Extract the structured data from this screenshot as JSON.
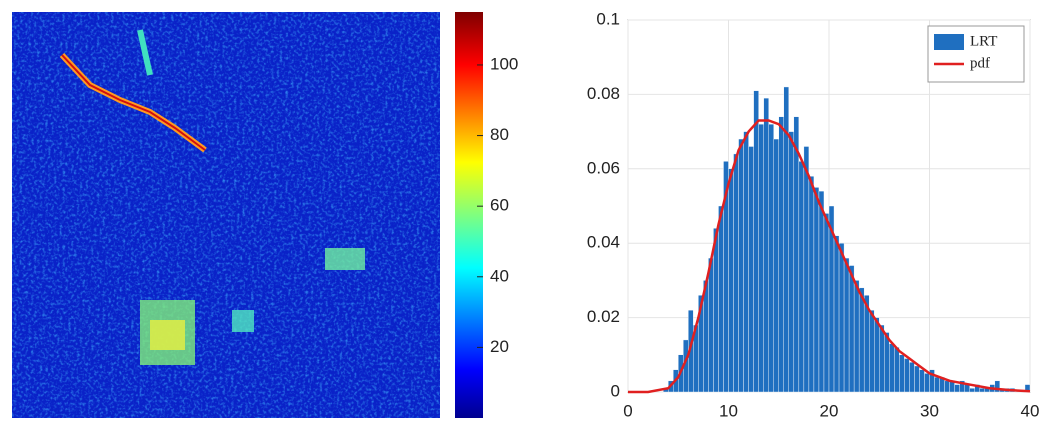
{
  "chart_data": [
    {
      "type": "heatmap",
      "clim": [
        0,
        115
      ],
      "cticks": [
        20,
        40,
        60,
        80,
        100
      ]
    },
    {
      "type": "histogram",
      "xlim": [
        0,
        40
      ],
      "ylim": [
        0,
        0.1
      ],
      "xticks": [
        0,
        10,
        20,
        30,
        40
      ],
      "yticks": [
        0,
        0.02,
        0.04,
        0.06,
        0.08,
        0.1
      ],
      "grid": true,
      "legend": "top-right",
      "bins": [
        0,
        0.5,
        1,
        1.5,
        2,
        2.5,
        3,
        3.5,
        4,
        4.5,
        5,
        5.5,
        6,
        6.5,
        7,
        7.5,
        8,
        8.5,
        9,
        9.5,
        10,
        10.5,
        11,
        11.5,
        12,
        12.5,
        13,
        13.5,
        14,
        14.5,
        15,
        15.5,
        16,
        16.5,
        17,
        17.5,
        18,
        18.5,
        19,
        19.5,
        20,
        20.5,
        21,
        21.5,
        22,
        22.5,
        23,
        23.5,
        24,
        24.5,
        25,
        25.5,
        26,
        26.5,
        27,
        27.5,
        28,
        28.5,
        29,
        29.5,
        30,
        30.5,
        31,
        31.5,
        32,
        32.5,
        33,
        33.5,
        34,
        34.5,
        35,
        35.5,
        36,
        36.5,
        37,
        37.5,
        38,
        38.5,
        39,
        39.5,
        40
      ],
      "series": [
        {
          "name": "LRT",
          "color": "#1f6fc0",
          "values": [
            0,
            0,
            0,
            0,
            0,
            0,
            0,
            0.001,
            0.003,
            0.006,
            0.01,
            0.014,
            0.022,
            0.018,
            0.026,
            0.03,
            0.036,
            0.044,
            0.05,
            0.062,
            0.06,
            0.064,
            0.068,
            0.07,
            0.066,
            0.081,
            0.072,
            0.079,
            0.072,
            0.068,
            0.074,
            0.082,
            0.07,
            0.074,
            0.062,
            0.066,
            0.058,
            0.055,
            0.054,
            0.048,
            0.05,
            0.042,
            0.04,
            0.036,
            0.034,
            0.03,
            0.028,
            0.026,
            0.022,
            0.02,
            0.018,
            0.016,
            0.013,
            0.012,
            0.01,
            0.009,
            0.008,
            0.007,
            0.006,
            0.005,
            0.006,
            0.004,
            0.004,
            0.003,
            0.003,
            0.002,
            0.003,
            0.002,
            0.001,
            0.002,
            0.001,
            0.001,
            0.002,
            0.003,
            0.001,
            0.001,
            0.001,
            0,
            0,
            0.002
          ]
        },
        {
          "name": "pdf",
          "color": "#e02020",
          "x": [
            0,
            2,
            4,
            5,
            6,
            7,
            8,
            9,
            10,
            11,
            12,
            13,
            14,
            15,
            16,
            17,
            18,
            19,
            20,
            21,
            22,
            23,
            24,
            25,
            26,
            27,
            28,
            29,
            30,
            32,
            34,
            36,
            38,
            40
          ],
          "values": [
            0,
            0,
            0.001,
            0.004,
            0.01,
            0.02,
            0.032,
            0.045,
            0.056,
            0.065,
            0.07,
            0.073,
            0.073,
            0.072,
            0.069,
            0.064,
            0.058,
            0.051,
            0.045,
            0.039,
            0.033,
            0.027,
            0.022,
            0.018,
            0.014,
            0.011,
            0.009,
            0.007,
            0.005,
            0.003,
            0.002,
            0.001,
            0.0005,
            0.0002
          ]
        }
      ]
    }
  ]
}
